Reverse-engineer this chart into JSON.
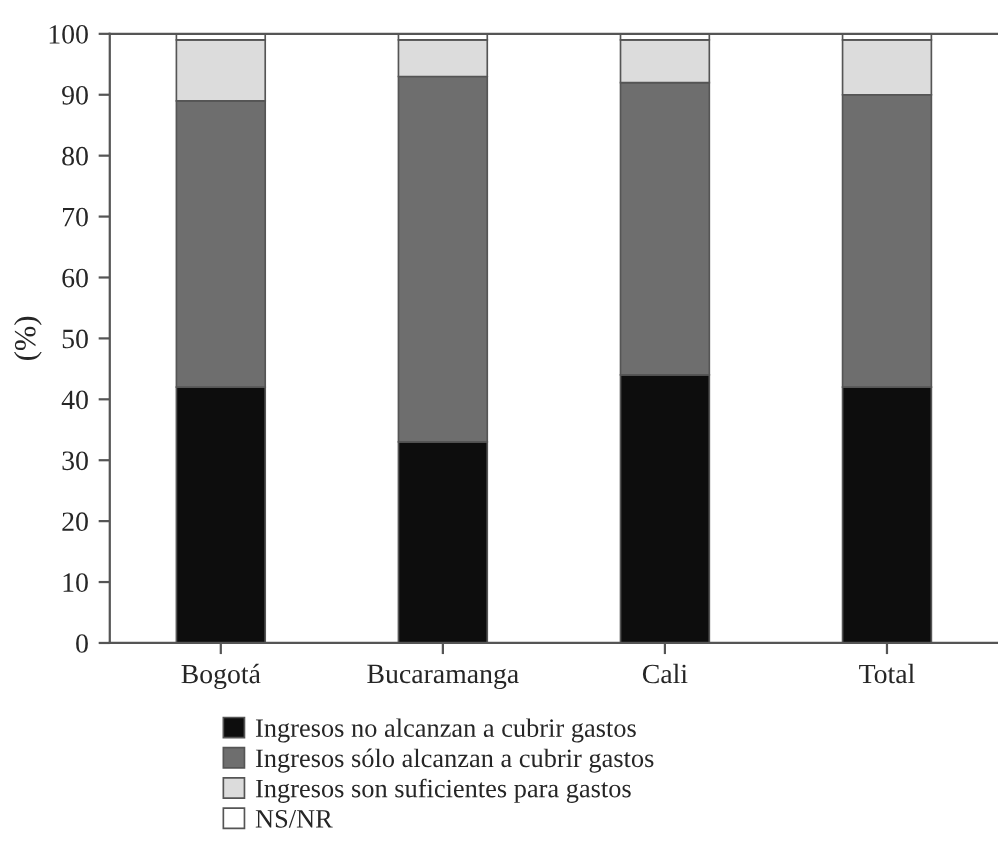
{
  "chart_data": {
    "type": "bar",
    "stacked": true,
    "ylabel": "(%)",
    "categories": [
      "Bogotá",
      "Bucaramanga",
      "Cali",
      "Total"
    ],
    "series": [
      {
        "name": "Ingresos no alcanzan a cubrir gastos",
        "color": "#0d0d0d",
        "values": [
          42,
          33,
          44,
          42
        ]
      },
      {
        "name": "Ingresos sólo alcanzan a cubrir gastos",
        "color": "#6e6e6e",
        "values": [
          47,
          60,
          48,
          48
        ]
      },
      {
        "name": "Ingresos son suficientes para gastos",
        "color": "#dcdcdc",
        "values": [
          10,
          6,
          7,
          9
        ]
      },
      {
        "name": "NS/NR",
        "color": "#ffffff",
        "values": [
          1,
          1,
          1,
          1
        ]
      }
    ],
    "ylim": [
      0,
      100
    ],
    "yticks": [
      0,
      10,
      20,
      30,
      40,
      50,
      60,
      70,
      80,
      90,
      100
    ],
    "grid": false,
    "legend": "bottom"
  }
}
